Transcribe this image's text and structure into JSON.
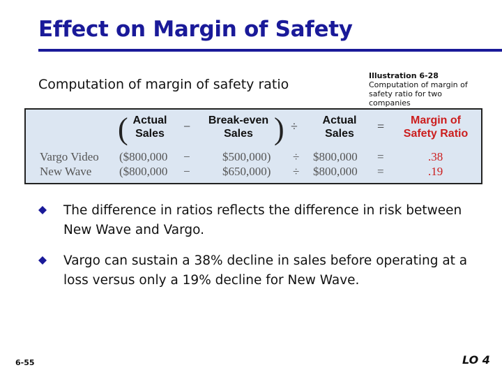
{
  "slide": {
    "title": "Effect on Margin of Safety",
    "subtitle": "Computation of margin of safety ratio",
    "illustration": {
      "heading": "Illustration 6-28",
      "caption": "Computation of margin of safety ratio for two companies"
    },
    "table": {
      "headers": {
        "actual_sales_1": [
          "Actual",
          "Sales"
        ],
        "minus": "−",
        "break_even_sales": [
          "Break-even",
          "Sales"
        ],
        "divide": "÷",
        "actual_sales_2": [
          "Actual",
          "Sales"
        ],
        "equals": "=",
        "margin_of_safety_ratio": [
          "Margin of",
          "Safety Ratio"
        ]
      },
      "rows": [
        {
          "company": "Vargo Video",
          "actual": "($800,000",
          "op1": "−",
          "break_even": "$500,000)",
          "op2": "÷",
          "actual2": "$800,000",
          "op3": "=",
          "ratio": ".38"
        },
        {
          "company": "New Wave",
          "actual": "($800,000",
          "op1": "−",
          "break_even": "$650,000)",
          "op2": "÷",
          "actual2": "$800,000",
          "op3": "=",
          "ratio": ".19"
        }
      ]
    },
    "bullets": [
      "The difference in ratios reflects the difference in risk between New Wave and Vargo.",
      "Vargo can sustain a 38% decline in sales before operating at a loss versus only a 19% decline for New Wave."
    ],
    "page_number": "6-55",
    "learning_objective": "LO 4",
    "colors": {
      "title": "#1a1a99",
      "table_bg": "#dce6f2",
      "ratio_red": "#cc1e1e"
    }
  }
}
